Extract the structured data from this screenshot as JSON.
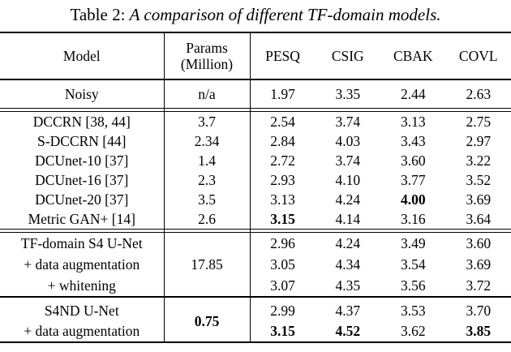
{
  "caption": {
    "label": "Table 2: ",
    "text": "A comparison of different TF-domain models."
  },
  "table": {
    "header": {
      "model": "Model",
      "params_line1": "Params",
      "params_line2": "(Million)",
      "metrics": [
        "PESQ",
        "CSIG",
        "CBAK",
        "COVL"
      ]
    },
    "noisy": {
      "model": "Noisy",
      "params": "n/a",
      "values": [
        "1.97",
        "3.35",
        "2.44",
        "2.63"
      ]
    },
    "baselines": [
      {
        "model": "DCCRN [38, 44]",
        "params": "3.7",
        "values": [
          "2.54",
          "3.74",
          "3.13",
          "2.75"
        ]
      },
      {
        "model": "S-DCCRN [44]",
        "params": "2.34",
        "values": [
          "2.84",
          "4.03",
          "3.43",
          "2.97"
        ]
      },
      {
        "model": "DCUnet-10 [37]",
        "params": "1.4",
        "values": [
          "2.72",
          "3.74",
          "3.60",
          "3.22"
        ]
      },
      {
        "model": "DCUnet-16 [37]",
        "params": "2.3",
        "values": [
          "2.93",
          "4.10",
          "3.77",
          "3.52"
        ]
      },
      {
        "model": "DCUnet-20 [37]",
        "params": "3.5",
        "values": [
          "3.13",
          "4.24",
          "4.00",
          "3.69"
        ],
        "bold_value_indices": [
          2
        ]
      },
      {
        "model": "Metric GAN+ [14]",
        "params": "2.6",
        "values": [
          "3.15",
          "4.14",
          "3.16",
          "3.64"
        ],
        "bold_value_indices": [
          0
        ]
      }
    ],
    "s4_section": {
      "params": "17.85",
      "rows": [
        {
          "model": "TF-domain S4 U-Net",
          "values": [
            "2.96",
            "4.24",
            "3.49",
            "3.60"
          ]
        },
        {
          "model": "+ data augmentation",
          "values": [
            "3.05",
            "4.34",
            "3.54",
            "3.69"
          ]
        },
        {
          "model": "+ whitening",
          "values": [
            "3.07",
            "4.35",
            "3.56",
            "3.72"
          ]
        }
      ]
    },
    "s4nd_section": {
      "params": "0.75",
      "params_bold": true,
      "rows": [
        {
          "model": "S4ND U-Net",
          "values": [
            "2.99",
            "4.37",
            "3.53",
            "3.70"
          ]
        },
        {
          "model": "+ data augmentation",
          "values": [
            "3.15",
            "4.52",
            "3.62",
            "3.85"
          ],
          "bold_value_indices": [
            0,
            1,
            3
          ]
        }
      ]
    }
  }
}
